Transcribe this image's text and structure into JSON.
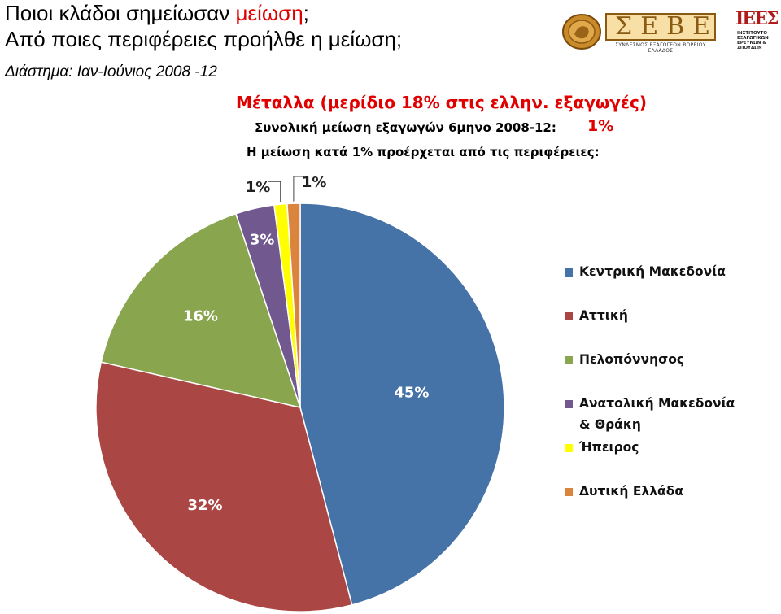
{
  "header": {
    "title_line1_prefix": "Ποιοι κλάδοι σημείωσαν ",
    "title_line1_highlight": "μείωση",
    "title_line1_suffix": ";",
    "title_line2": "Από ποιες περιφέρειες προήλθε η μείωση;",
    "subtitle": "Διάστημα: Ιαν-Ιούνιος 2008 -12"
  },
  "logos": {
    "sebe_letters": "ΣΕΒΕ",
    "sebe_caption": "ΣΥΝΔΕΣΜΟΣ ΕΞΑΓΩΓΕΩΝ ΒΟΡΕΙΟΥ ΕΛΛΑΔΟΣ",
    "iees_mark": "ΙΕΕΣ",
    "iees_caption": "ΙΝΣΤΙΤΟΥΤΟ ΕΞΑΓΩΓΙΚΩΝ ΕΡΕΥΝΩΝ & ΣΠΟΥΔΩΝ"
  },
  "chart_data": {
    "type": "pie",
    "title": "Μέταλλα (μερίδιο 18% στις ελλην. εξαγωγές)",
    "total_label": "Συνολική μείωση εξαγωγών 6μηνο 2008-12:",
    "total_value": "1%",
    "drop_label": "Η μείωση κατά 1% προέρχεται από τις περιφέρειες:",
    "start_angle_deg": 0,
    "legend_position": "right",
    "categories": [
      "Κεντρική Μακεδονία",
      "Αττική",
      "Πελοπόννησος",
      "Ανατολική Μακεδονία & Θράκη",
      "Ήπειρος",
      "Δυτική Ελλάδα"
    ],
    "legend_labels": [
      [
        "Κεντρική Μακεδονία"
      ],
      [
        "Αττική"
      ],
      [
        "Πελοπόννησος"
      ],
      [
        "Ανατολική Μακεδονία",
        "& Θράκη"
      ],
      [
        "Ήπειρος"
      ],
      [
        "Δυτική Ελλάδα"
      ]
    ],
    "values": [
      45,
      32,
      16,
      3,
      1,
      1
    ],
    "labels": [
      "45%",
      "32%",
      "16%",
      "3%",
      "1%",
      "1%"
    ],
    "colors": [
      "#4572a7",
      "#aa4643",
      "#89a54e",
      "#71588f",
      "#ffff00",
      "#db843d"
    ]
  }
}
